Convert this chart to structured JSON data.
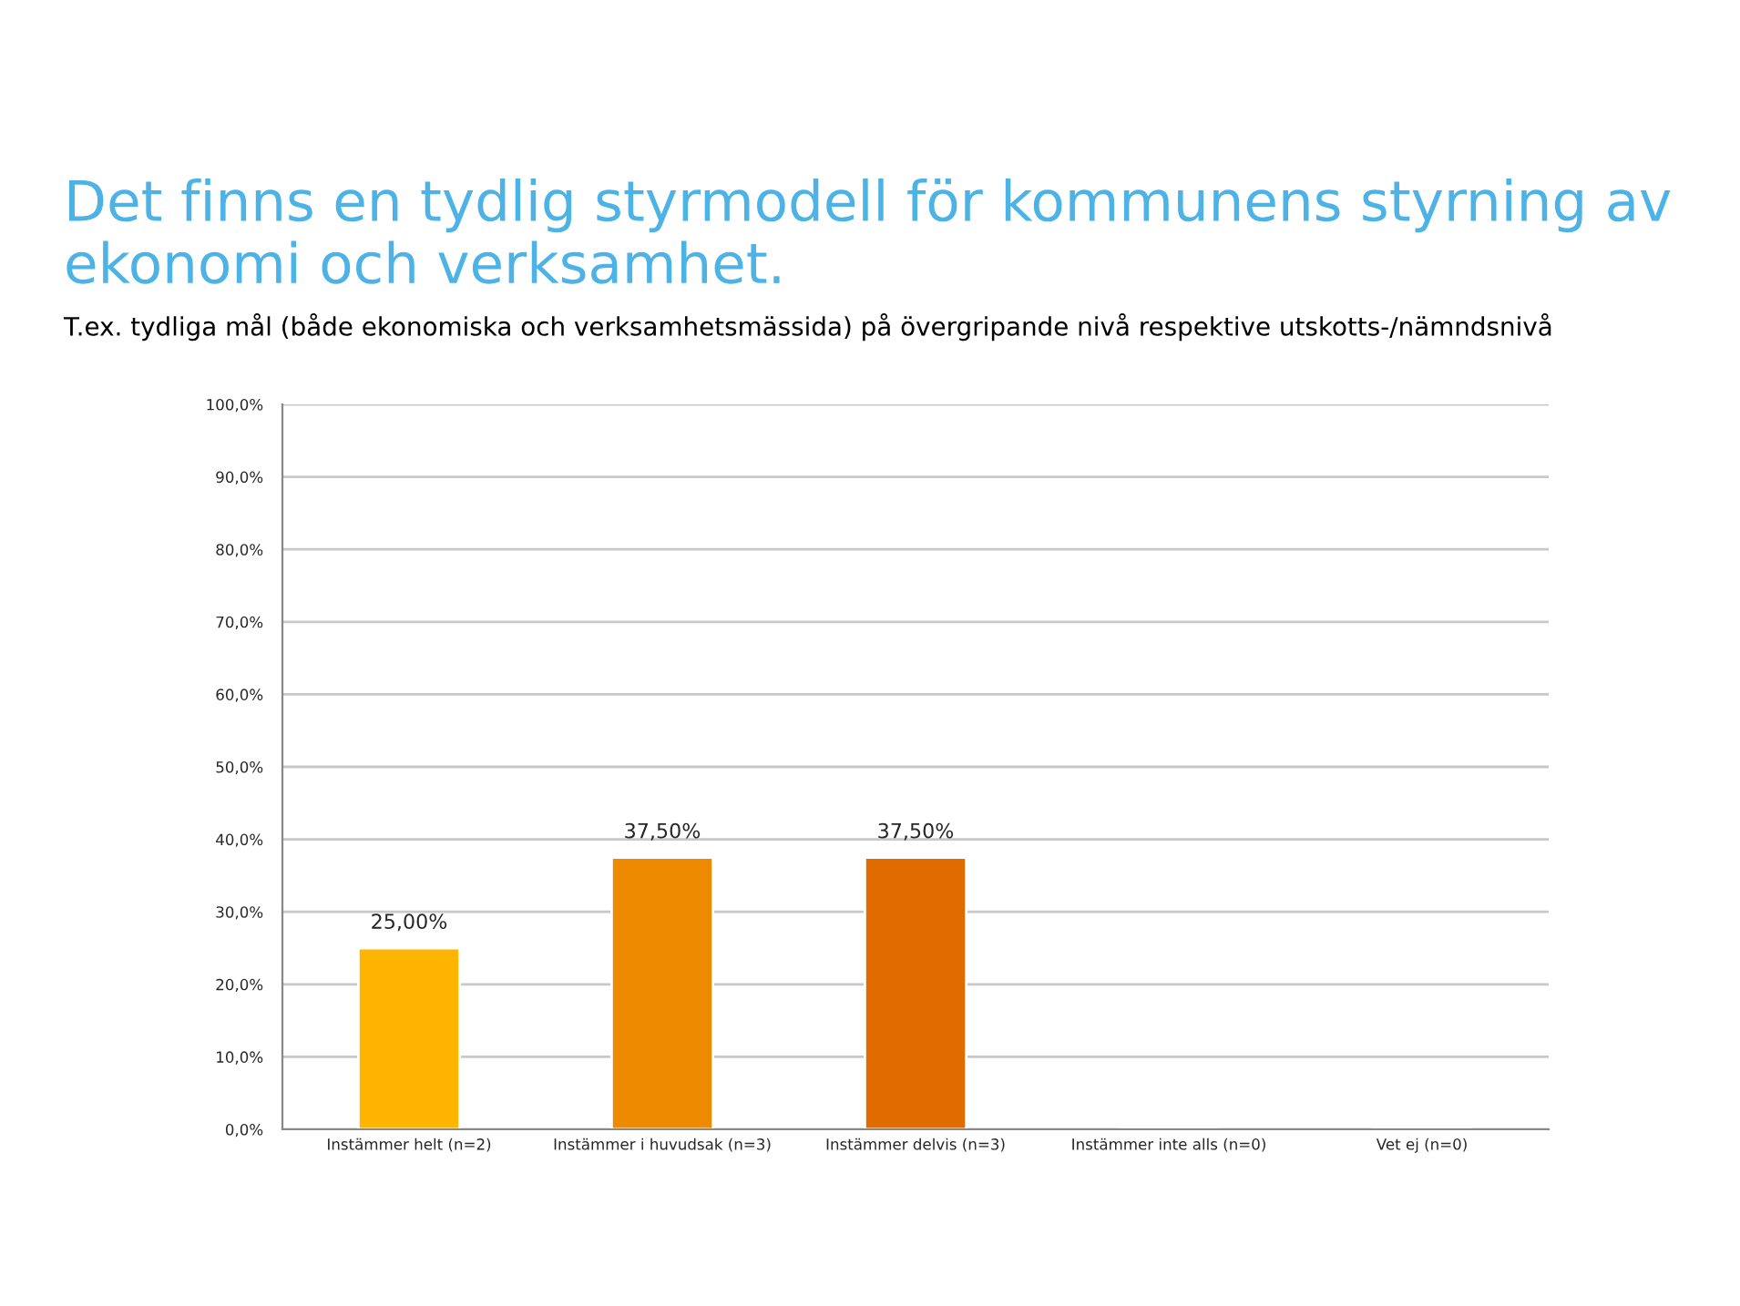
{
  "chart_data": {
    "type": "bar",
    "title": "Det finns en tydlig styrmodell för kommunens styrning av ekonomi och verksamhet.",
    "subtitle": "T.ex. tydliga mål (både ekonomiska och verksamhetsmässida) på övergripande nivå respektive utskotts-/nämndsnivå",
    "categories": [
      "Instämmer helt (n=2)",
      "Instämmer i huvudsak (n=3)",
      "Instämmer delvis (n=3)",
      "Instämmer inte alls (n=0)",
      "Vet ej (n=0)"
    ],
    "values": [
      25,
      37.5,
      37.5,
      0,
      0
    ],
    "colors": [
      "#ffb400",
      "#ee8a00",
      "#e06c00",
      null,
      null
    ],
    "value_labels": [
      "25,00%",
      "37,50%",
      "37,50%",
      null,
      null
    ],
    "ylim": [
      0,
      100
    ],
    "yticks": [
      {
        "value": 0,
        "label": "0,0%"
      },
      {
        "value": 10,
        "label": "10,0%"
      },
      {
        "value": 20,
        "label": "20,0%"
      },
      {
        "value": 30,
        "label": "30,0%"
      },
      {
        "value": 40,
        "label": "40,0%"
      },
      {
        "value": 50,
        "label": "50,0%"
      },
      {
        "value": 60,
        "label": "60,0%"
      },
      {
        "value": 70,
        "label": "70,0%"
      },
      {
        "value": 80,
        "label": "80,0%"
      },
      {
        "value": 90,
        "label": "90,0%"
      },
      {
        "value": 100,
        "label": "100,0%"
      }
    ],
    "grid": "y"
  }
}
